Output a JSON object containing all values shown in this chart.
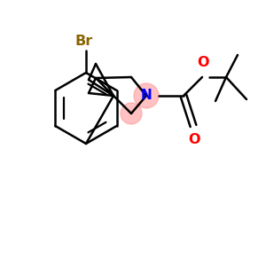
{
  "background_color": "#ffffff",
  "bond_color": "#000000",
  "br_color": "#8B6400",
  "n_color": "#0000ff",
  "o_color": "#ff0000",
  "highlight_color": "#ff9999",
  "highlight_alpha": 0.6,
  "figsize": [
    3.0,
    3.0
  ],
  "dpi": 100,
  "br_label": "Br",
  "n_label": "N",
  "o_label1": "O",
  "o_label2": "O"
}
